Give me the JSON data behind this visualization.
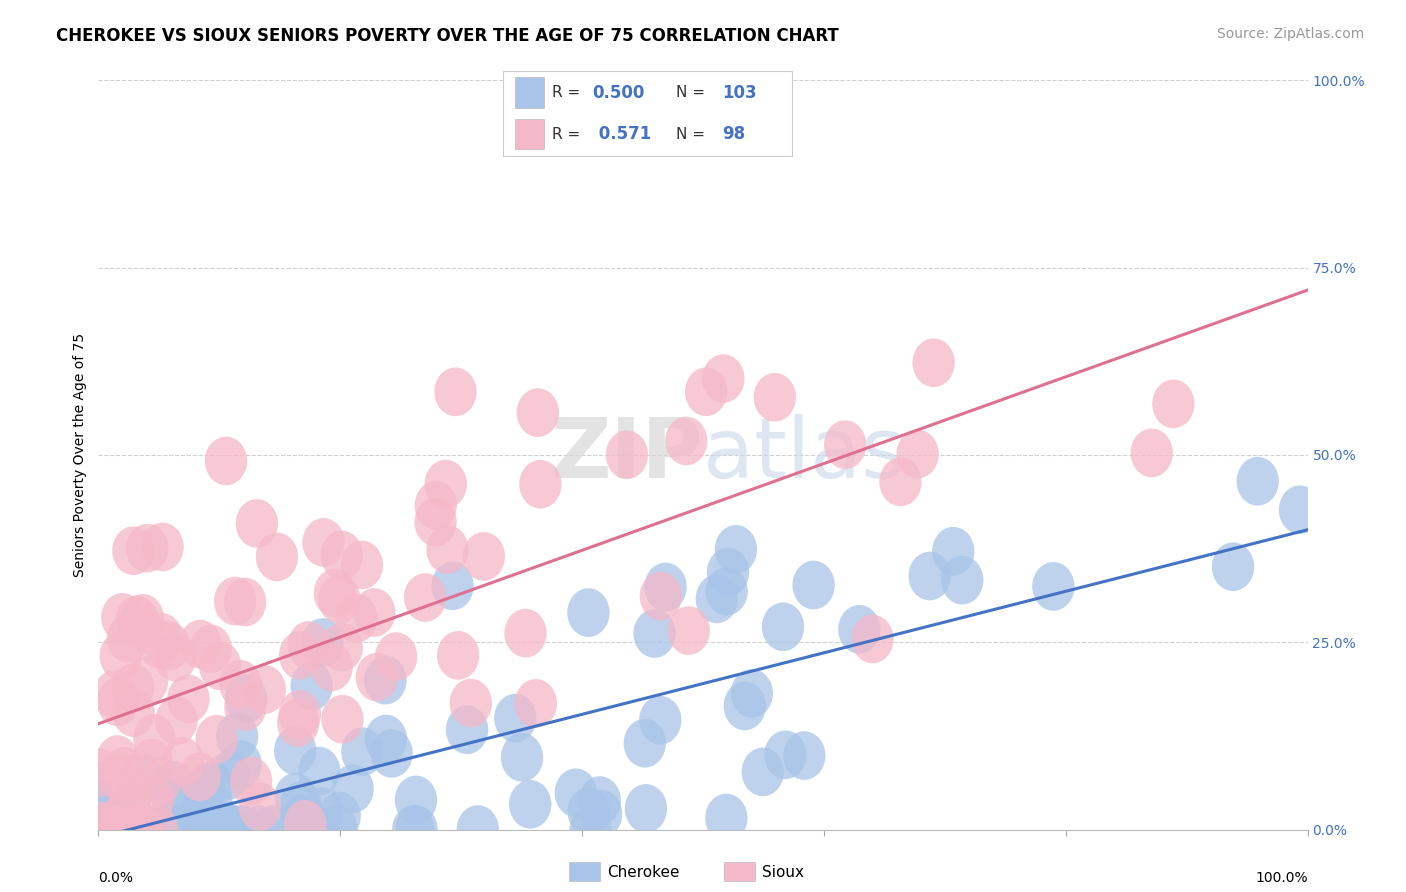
{
  "title": "CHEROKEE VS SIOUX SENIORS POVERTY OVER THE AGE OF 75 CORRELATION CHART",
  "source": "Source: ZipAtlas.com",
  "ylabel": "Seniors Poverty Over the Age of 75",
  "yticks": [
    "100.0%",
    "75.0%",
    "50.0%",
    "25.0%",
    "0.0%"
  ],
  "ytick_vals": [
    100,
    75,
    50,
    25,
    0
  ],
  "xtick_vals": [
    0,
    20,
    40,
    60,
    80,
    100
  ],
  "cherokee_color": "#a8c4e8",
  "sioux_color": "#f5b8c8",
  "cherokee_line_color": "#4472c4",
  "sioux_line_color": "#e07090",
  "cherokee_R": 0.5,
  "cherokee_N": 103,
  "sioux_R": 0.571,
  "sioux_N": 98,
  "legend_color": "#4472c4",
  "background_color": "#ffffff",
  "grid_color": "#d0d0d0",
  "title_fontsize": 12,
  "axis_label_fontsize": 10,
  "tick_fontsize": 10,
  "source_fontsize": 10,
  "cherokee_intercept": -5,
  "cherokee_slope": 0.45,
  "sioux_intercept": 15,
  "sioux_slope": 0.52,
  "rand_seed": 12
}
